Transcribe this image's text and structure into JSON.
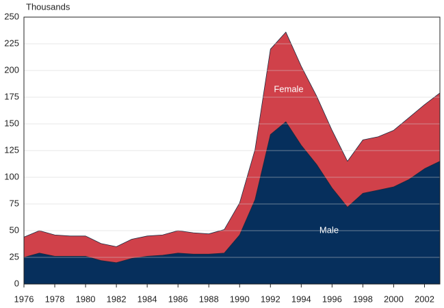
{
  "chart_data": {
    "type": "stacked_area",
    "y_axis_label": "Thousands",
    "x": [
      1976,
      1977,
      1978,
      1979,
      1980,
      1981,
      1982,
      1983,
      1984,
      1985,
      1986,
      1987,
      1988,
      1989,
      1990,
      1991,
      1992,
      1993,
      1994,
      1995,
      1996,
      1997,
      1998,
      1999,
      2000,
      2001,
      2002,
      2003
    ],
    "series": [
      {
        "name": "Male",
        "color": "#062f5c",
        "values": [
          25,
          29,
          26,
          26,
          26,
          22,
          20,
          24,
          26,
          27,
          29,
          28,
          28,
          29,
          46,
          79,
          140,
          152,
          130,
          112,
          90,
          72,
          85,
          88,
          91,
          98,
          108,
          115
        ]
      },
      {
        "name": "Female",
        "color": "#d0414a",
        "values": [
          19,
          21,
          20,
          19,
          19,
          16,
          15,
          18,
          19,
          19,
          21,
          20,
          19,
          22,
          30,
          47,
          80,
          84,
          74,
          64,
          54,
          43,
          50,
          50,
          53,
          58,
          60,
          64
        ]
      }
    ],
    "xlim": [
      1976,
      2003
    ],
    "xticks": [
      1976,
      1978,
      1980,
      1982,
      1984,
      1986,
      1988,
      1990,
      1992,
      1994,
      1996,
      1998,
      2000,
      2002
    ],
    "ylim": [
      0,
      250
    ],
    "yticks": [
      0,
      25,
      50,
      75,
      100,
      125,
      150,
      175,
      200,
      225,
      250
    ],
    "grid": true
  }
}
